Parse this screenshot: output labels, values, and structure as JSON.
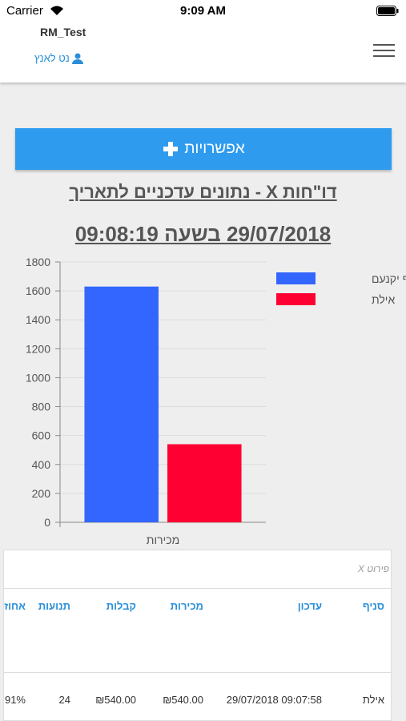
{
  "status_bar": {
    "carrier": "Carrier",
    "time": "9:09 AM"
  },
  "header": {
    "app_name": "RM_Test",
    "user": "נט לאנץ"
  },
  "options_button": "אפשרויות",
  "report_title": "דו\"חות X - נתונים עדכניים לתאריך",
  "report_date": "29/07/2018 בשעה 09:08:19",
  "chart_data": {
    "type": "bar",
    "categories": [
      "מכירות"
    ],
    "series": [
      {
        "name": "סניף יקנעם",
        "color": "#3366ff",
        "values": [
          1630
        ]
      },
      {
        "name": "אילת",
        "color": "#ff0033",
        "values": [
          540
        ]
      }
    ],
    "ylim": [
      0,
      1800
    ],
    "yticks": [
      0,
      200,
      400,
      600,
      800,
      1000,
      1200,
      1400,
      1600,
      1800
    ],
    "grid": true,
    "legend": "right"
  },
  "table": {
    "search_placeholder": "פירוט X",
    "headers": [
      "סניף",
      "עדכון",
      "מכירות",
      "קבלות",
      "תנועות",
      "אחוז"
    ],
    "rows": [
      [
        "אילת",
        "29/07/2018 09:07:58",
        "₪540.00",
        "₪540.00",
        "24",
        "91%"
      ]
    ]
  }
}
